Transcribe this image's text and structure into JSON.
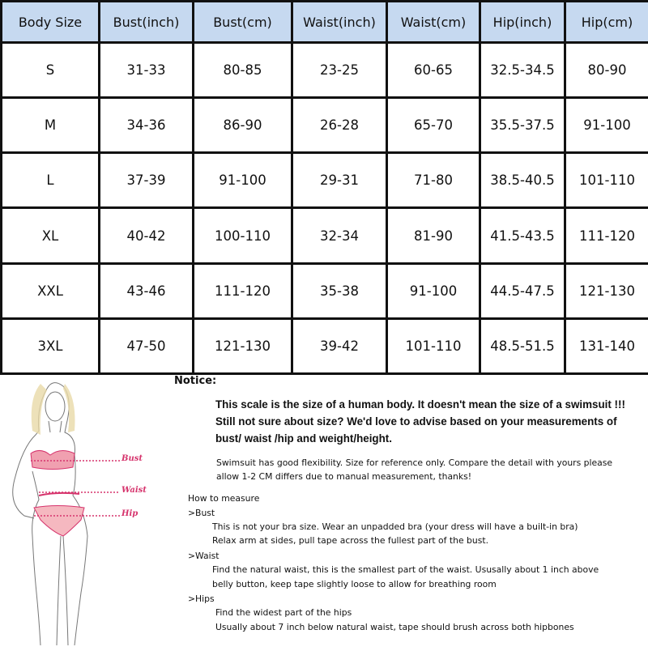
{
  "table": {
    "headers": [
      "Body Size",
      "Bust(inch)",
      "Bust(cm)",
      "Waist(inch)",
      "Waist(cm)",
      "Hip(inch)",
      "Hip(cm)"
    ],
    "rows": [
      [
        "S",
        "31-33",
        "80-85",
        "23-25",
        "60-65",
        "32.5-34.5",
        "80-90"
      ],
      [
        "M",
        "34-36",
        "86-90",
        "26-28",
        "65-70",
        "35.5-37.5",
        "91-100"
      ],
      [
        "L",
        "37-39",
        "91-100",
        "29-31",
        "71-80",
        "38.5-40.5",
        "101-110"
      ],
      [
        "XL",
        "40-42",
        "100-110",
        "32-34",
        "81-90",
        "41.5-43.5",
        "111-120"
      ],
      [
        "XXL",
        "43-46",
        "111-120",
        "35-38",
        "91-100",
        "44.5-47.5",
        "121-130"
      ],
      [
        "3XL",
        "47-50",
        "121-130",
        "39-42",
        "101-110",
        "48.5-51.5",
        "131-140"
      ]
    ],
    "header_color": "#c6d9f0"
  },
  "figure": {
    "labels": {
      "bust": "Bust",
      "waist": "Waist",
      "hip": "Hip"
    },
    "accent_color": "#d6336c"
  },
  "notice": {
    "title": "Notice:",
    "bold_lines": [
      "This scale is the size of a human body. It doesn't mean the size of a swimsuit !!!",
      "Still not sure about size?  We'd love to advise based on your measurements of",
      "bust/ waist /hip and weight/height."
    ],
    "flex_lines": [
      "Swimsuit has good flexibility. Size for reference only. Compare the detail with yours please",
      "allow 1-2 CM differs due to manual measurement, thanks!"
    ],
    "how_to": "How to measure",
    "bust": {
      "heading": ">Bust",
      "lines": [
        "This is not your bra size. Wear an unpadded bra (your dress will have a built-in bra)",
        "Relax arm at sides, pull tape across the fullest part of the bust."
      ]
    },
    "waist": {
      "heading": ">Waist",
      "lines": [
        "Find the natural waist, this is the smallest part of the waist. Ususally about 1 inch above",
        "belly button, keep tape slightly loose to allow for breathing room"
      ]
    },
    "hips": {
      "heading": ">Hips",
      "lines": [
        "Find the widest part of the hips",
        "Usually about 7 inch below natural waist, tape should brush across both hipbones"
      ]
    }
  }
}
